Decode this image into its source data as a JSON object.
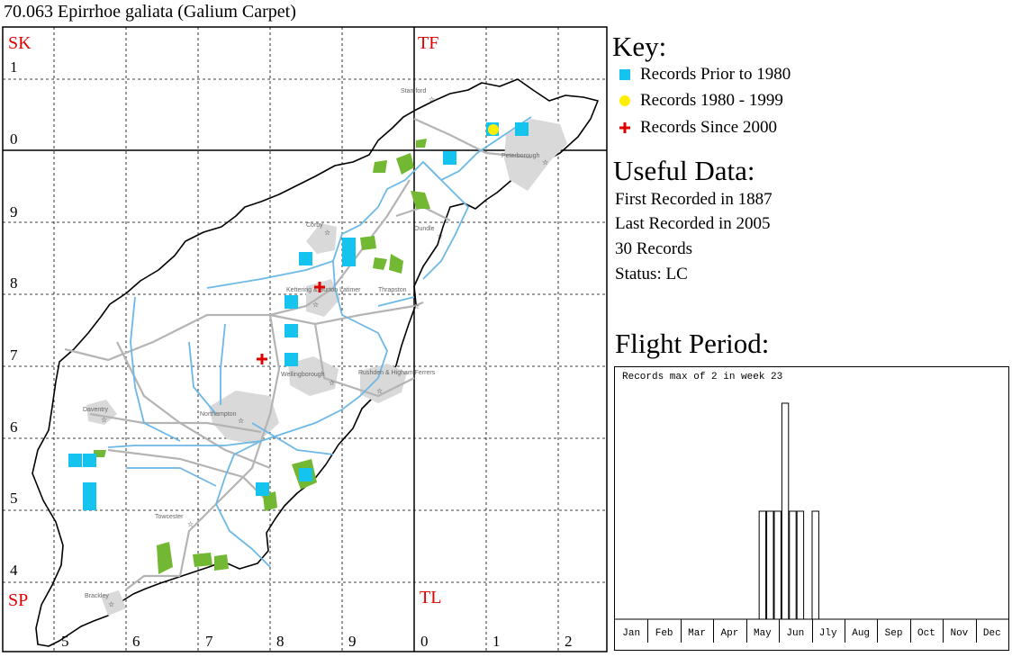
{
  "title": "70.063 Epirrhoe galiata (Galium Carpet)",
  "grid": {
    "squares": {
      "top_left": "SK",
      "top_right": "TF",
      "bottom_left": "SP",
      "bottom_right": "TL"
    },
    "row_labels": [
      "1",
      "0",
      "9",
      "8",
      "7",
      "6",
      "5",
      "4"
    ],
    "col_labels": [
      "5",
      "6",
      "7",
      "8",
      "9",
      "0",
      "1",
      "2"
    ]
  },
  "map_labels": {
    "towns": [
      "Stamford",
      "Peterborough",
      "Oundle",
      "Corby",
      "Kettering & Burton Latimer",
      "Thrapston",
      "Wellingborough",
      "Rushden & Higham Ferrers",
      "Daventry",
      "Northampton",
      "Towcester",
      "Brackley"
    ]
  },
  "key": {
    "title": "Key:",
    "items": [
      {
        "label": "Records Prior to 1980",
        "symbol": "square",
        "color": "#14c3ee"
      },
      {
        "label": "Records 1980 - 1999",
        "symbol": "circle",
        "color": "#ffee00"
      },
      {
        "label": "Records Since 2000",
        "symbol": "cross",
        "color": "#e00000"
      }
    ]
  },
  "useful_data": {
    "title": "Useful Data:",
    "first_recorded": "First Recorded in 1887",
    "last_recorded": "Last Recorded in 2005",
    "records": "30 Records",
    "status": "Status: LC"
  },
  "flight_period": {
    "title": "Flight Period:",
    "note": "Records max of 2 in week 23",
    "months": [
      "Jan",
      "Feb",
      "Mar",
      "Apr",
      "May",
      "Jun",
      "Jly",
      "Aug",
      "Sep",
      "Oct",
      "Nov",
      "Dec"
    ]
  },
  "chart_data": {
    "type": "bar",
    "title": "Records max of 2 in week 23",
    "x": [
      20,
      21,
      22,
      23,
      24,
      25,
      27
    ],
    "values": [
      1,
      1,
      1,
      2,
      1,
      1,
      1
    ],
    "xlabel": "",
    "ylabel": "",
    "ylim": [
      0,
      2
    ],
    "grid": false
  },
  "records": {
    "prior_1980_count": 14,
    "r1980_1999_count": 1,
    "since_2000_count": 2
  }
}
